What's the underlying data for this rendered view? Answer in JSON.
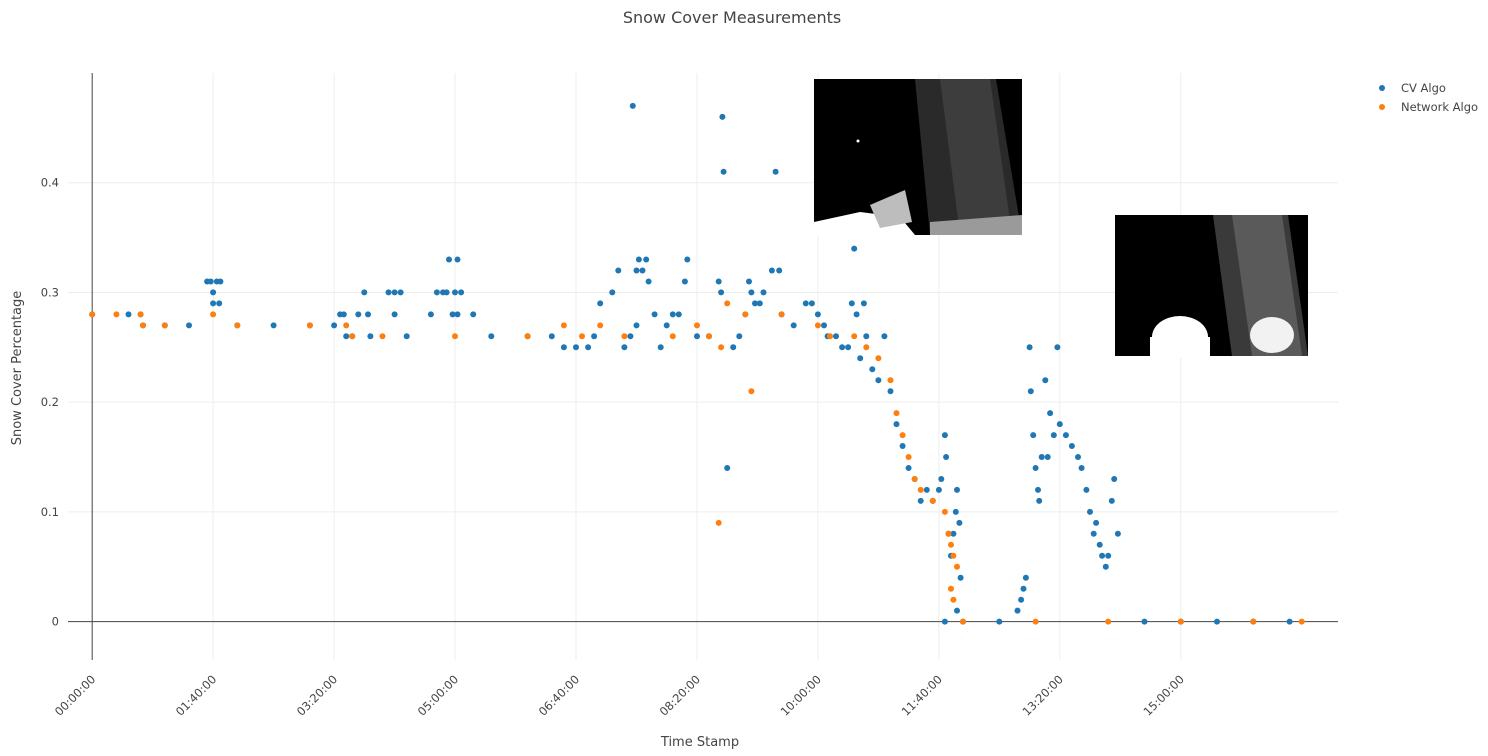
{
  "chart_data": {
    "type": "scatter",
    "title": "Snow Cover Measurements",
    "xlabel": "Time Stamp",
    "ylabel": "Snow Cover Percentage",
    "x_unit": "time (HH:MM:SS)",
    "xlim": [
      "-00:20:00",
      "17:10:00"
    ],
    "ylim": [
      -0.035,
      0.5
    ],
    "x_ticks": [
      "00:00:00",
      "01:40:00",
      "03:20:00",
      "05:00:00",
      "06:40:00",
      "08:20:00",
      "10:00:00",
      "11:40:00",
      "13:20:00",
      "15:00:00"
    ],
    "y_ticks": [
      "0",
      "0.1",
      "0.2",
      "0.3",
      "0.4"
    ],
    "grid": true,
    "legend_position": "top-right",
    "series": [
      {
        "name": "CV Algo",
        "color": "#1f77b4",
        "points": [
          [
            "00:00:00",
            0.28
          ],
          [
            "00:30:00",
            0.28
          ],
          [
            "00:40:00",
            0.28
          ],
          [
            "00:42:00",
            0.27
          ],
          [
            "01:00:00",
            0.27
          ],
          [
            "01:20:00",
            0.27
          ],
          [
            "01:35:00",
            0.31
          ],
          [
            "01:38:00",
            0.31
          ],
          [
            "01:40:00",
            0.3
          ],
          [
            "01:40:00",
            0.29
          ],
          [
            "01:43:00",
            0.31
          ],
          [
            "01:46:00",
            0.31
          ],
          [
            "01:45:00",
            0.29
          ],
          [
            "02:00:00",
            0.27
          ],
          [
            "02:30:00",
            0.27
          ],
          [
            "03:00:00",
            0.27
          ],
          [
            "03:20:00",
            0.27
          ],
          [
            "03:25:00",
            0.28
          ],
          [
            "03:28:00",
            0.28
          ],
          [
            "03:30:00",
            0.26
          ],
          [
            "03:35:00",
            0.26
          ],
          [
            "03:40:00",
            0.28
          ],
          [
            "03:45:00",
            0.3
          ],
          [
            "03:48:00",
            0.28
          ],
          [
            "03:50:00",
            0.26
          ],
          [
            "04:05:00",
            0.3
          ],
          [
            "04:10:00",
            0.3
          ],
          [
            "04:15:00",
            0.3
          ],
          [
            "04:10:00",
            0.28
          ],
          [
            "04:20:00",
            0.26
          ],
          [
            "04:40:00",
            0.28
          ],
          [
            "04:45:00",
            0.3
          ],
          [
            "04:50:00",
            0.3
          ],
          [
            "04:53:00",
            0.3
          ],
          [
            "04:55:00",
            0.33
          ],
          [
            "05:00:00",
            0.3
          ],
          [
            "05:02:00",
            0.33
          ],
          [
            "05:05:00",
            0.3
          ],
          [
            "04:58:00",
            0.28
          ],
          [
            "05:02:00",
            0.28
          ],
          [
            "05:15:00",
            0.28
          ],
          [
            "05:30:00",
            0.26
          ],
          [
            "06:00:00",
            0.26
          ],
          [
            "06:20:00",
            0.26
          ],
          [
            "06:30:00",
            0.25
          ],
          [
            "06:40:00",
            0.25
          ],
          [
            "06:50:00",
            0.25
          ],
          [
            "06:55:00",
            0.26
          ],
          [
            "07:00:00",
            0.29
          ],
          [
            "07:10:00",
            0.3
          ],
          [
            "07:15:00",
            0.32
          ],
          [
            "07:20:00",
            0.25
          ],
          [
            "07:25:00",
            0.26
          ],
          [
            "07:30:00",
            0.32
          ],
          [
            "07:32:00",
            0.33
          ],
          [
            "07:35:00",
            0.32
          ],
          [
            "07:38:00",
            0.33
          ],
          [
            "07:30:00",
            0.27
          ],
          [
            "07:40:00",
            0.31
          ],
          [
            "07:27:00",
            0.47
          ],
          [
            "07:45:00",
            0.28
          ],
          [
            "07:50:00",
            0.25
          ],
          [
            "07:55:00",
            0.27
          ],
          [
            "08:00:00",
            0.28
          ],
          [
            "08:05:00",
            0.28
          ],
          [
            "08:10:00",
            0.31
          ],
          [
            "08:12:00",
            0.33
          ],
          [
            "08:20:00",
            0.26
          ],
          [
            "08:30:00",
            0.26
          ],
          [
            "08:38:00",
            0.31
          ],
          [
            "08:40:00",
            0.3
          ],
          [
            "08:41:00",
            0.46
          ],
          [
            "08:42:00",
            0.41
          ],
          [
            "08:45:00",
            0.14
          ],
          [
            "08:50:00",
            0.25
          ],
          [
            "08:55:00",
            0.26
          ],
          [
            "09:00:00",
            0.28
          ],
          [
            "09:03:00",
            0.31
          ],
          [
            "09:05:00",
            0.3
          ],
          [
            "09:08:00",
            0.29
          ],
          [
            "09:12:00",
            0.29
          ],
          [
            "09:15:00",
            0.3
          ],
          [
            "09:22:00",
            0.32
          ],
          [
            "09:25:00",
            0.41
          ],
          [
            "09:28:00",
            0.32
          ],
          [
            "09:30:00",
            0.28
          ],
          [
            "09:40:00",
            0.27
          ],
          [
            "09:50:00",
            0.29
          ],
          [
            "09:55:00",
            0.29
          ],
          [
            "10:00:00",
            0.28
          ],
          [
            "10:05:00",
            0.27
          ],
          [
            "10:08:00",
            0.26
          ],
          [
            "10:15:00",
            0.26
          ],
          [
            "10:20:00",
            0.25
          ],
          [
            "10:25:00",
            0.25
          ],
          [
            "10:28:00",
            0.29
          ],
          [
            "10:30:00",
            0.34
          ],
          [
            "10:32:00",
            0.28
          ],
          [
            "10:35:00",
            0.24
          ],
          [
            "10:38:00",
            0.29
          ],
          [
            "10:40:00",
            0.26
          ],
          [
            "10:45:00",
            0.23
          ],
          [
            "10:50:00",
            0.22
          ],
          [
            "10:55:00",
            0.26
          ],
          [
            "11:00:00",
            0.21
          ],
          [
            "11:05:00",
            0.18
          ],
          [
            "11:10:00",
            0.16
          ],
          [
            "11:15:00",
            0.14
          ],
          [
            "11:20:00",
            0.13
          ],
          [
            "11:25:00",
            0.11
          ],
          [
            "11:30:00",
            0.12
          ],
          [
            "11:35:00",
            0.11
          ],
          [
            "11:40:00",
            0.12
          ],
          [
            "11:42:00",
            0.13
          ],
          [
            "11:45:00",
            0.17
          ],
          [
            "11:46:00",
            0.15
          ],
          [
            "11:48:00",
            0.08
          ],
          [
            "11:50:00",
            0.06
          ],
          [
            "11:52:00",
            0.08
          ],
          [
            "11:54:00",
            0.1
          ],
          [
            "11:55:00",
            0.12
          ],
          [
            "11:57:00",
            0.09
          ],
          [
            "11:58:00",
            0.04
          ],
          [
            "11:45:00",
            0.0
          ],
          [
            "11:55:00",
            0.01
          ],
          [
            "12:00:00",
            0.0
          ],
          [
            "12:30:00",
            0.0
          ],
          [
            "12:45:00",
            0.01
          ],
          [
            "12:48:00",
            0.02
          ],
          [
            "12:50:00",
            0.03
          ],
          [
            "12:52:00",
            0.04
          ],
          [
            "12:55:00",
            0.25
          ],
          [
            "12:56:00",
            0.21
          ],
          [
            "12:58:00",
            0.17
          ],
          [
            "13:00:00",
            0.14
          ],
          [
            "13:02:00",
            0.12
          ],
          [
            "13:03:00",
            0.11
          ],
          [
            "13:05:00",
            0.15
          ],
          [
            "13:08:00",
            0.22
          ],
          [
            "13:10:00",
            0.15
          ],
          [
            "13:12:00",
            0.19
          ],
          [
            "13:15:00",
            0.17
          ],
          [
            "13:18:00",
            0.25
          ],
          [
            "13:20:00",
            0.18
          ],
          [
            "13:25:00",
            0.17
          ],
          [
            "13:30:00",
            0.16
          ],
          [
            "13:35:00",
            0.15
          ],
          [
            "13:38:00",
            0.14
          ],
          [
            "13:42:00",
            0.12
          ],
          [
            "13:45:00",
            0.1
          ],
          [
            "13:48:00",
            0.08
          ],
          [
            "13:50:00",
            0.09
          ],
          [
            "13:53:00",
            0.07
          ],
          [
            "13:55:00",
            0.06
          ],
          [
            "13:58:00",
            0.05
          ],
          [
            "14:00:00",
            0.06
          ],
          [
            "14:03:00",
            0.11
          ],
          [
            "14:05:00",
            0.13
          ],
          [
            "14:08:00",
            0.08
          ],
          [
            "14:30:00",
            0.0
          ],
          [
            "15:00:00",
            0.0
          ],
          [
            "15:30:00",
            0.0
          ],
          [
            "16:00:00",
            0.0
          ],
          [
            "16:30:00",
            0.0
          ]
        ]
      },
      {
        "name": "Network Algo",
        "color": "#ff7f0e",
        "points": [
          [
            "00:00:00",
            0.28
          ],
          [
            "00:20:00",
            0.28
          ],
          [
            "00:40:00",
            0.28
          ],
          [
            "00:42:00",
            0.27
          ],
          [
            "01:00:00",
            0.27
          ],
          [
            "01:40:00",
            0.28
          ],
          [
            "02:00:00",
            0.27
          ],
          [
            "03:00:00",
            0.27
          ],
          [
            "03:30:00",
            0.27
          ],
          [
            "03:35:00",
            0.26
          ],
          [
            "04:00:00",
            0.26
          ],
          [
            "05:00:00",
            0.26
          ],
          [
            "06:00:00",
            0.26
          ],
          [
            "06:30:00",
            0.27
          ],
          [
            "06:45:00",
            0.26
          ],
          [
            "07:00:00",
            0.27
          ],
          [
            "07:20:00",
            0.26
          ],
          [
            "08:00:00",
            0.26
          ],
          [
            "08:20:00",
            0.27
          ],
          [
            "08:30:00",
            0.26
          ],
          [
            "08:40:00",
            0.25
          ],
          [
            "08:45:00",
            0.29
          ],
          [
            "08:38:00",
            0.09
          ],
          [
            "09:05:00",
            0.21
          ],
          [
            "09:00:00",
            0.28
          ],
          [
            "09:30:00",
            0.28
          ],
          [
            "10:00:00",
            0.27
          ],
          [
            "10:10:00",
            0.26
          ],
          [
            "10:30:00",
            0.26
          ],
          [
            "10:40:00",
            0.25
          ],
          [
            "10:50:00",
            0.24
          ],
          [
            "11:00:00",
            0.22
          ],
          [
            "11:05:00",
            0.19
          ],
          [
            "11:10:00",
            0.17
          ],
          [
            "11:15:00",
            0.15
          ],
          [
            "11:20:00",
            0.13
          ],
          [
            "11:25:00",
            0.12
          ],
          [
            "11:35:00",
            0.11
          ],
          [
            "11:45:00",
            0.1
          ],
          [
            "11:48:00",
            0.08
          ],
          [
            "11:50:00",
            0.07
          ],
          [
            "11:52:00",
            0.06
          ],
          [
            "11:55:00",
            0.05
          ],
          [
            "11:50:00",
            0.03
          ],
          [
            "11:52:00",
            0.02
          ],
          [
            "12:00:00",
            0.0
          ],
          [
            "13:00:00",
            0.0
          ],
          [
            "14:00:00",
            0.0
          ],
          [
            "15:00:00",
            0.0
          ],
          [
            "16:00:00",
            0.0
          ],
          [
            "16:40:00",
            0.0
          ]
        ]
      }
    ],
    "insets": [
      {
        "name": "early-frame",
        "kind": "grayscale camera frame with white snow mask"
      },
      {
        "name": "late-frame",
        "kind": "grayscale camera frame with bright blob"
      }
    ]
  },
  "legend": {
    "cv_label": "CV Algo",
    "network_label": "Network Algo"
  }
}
